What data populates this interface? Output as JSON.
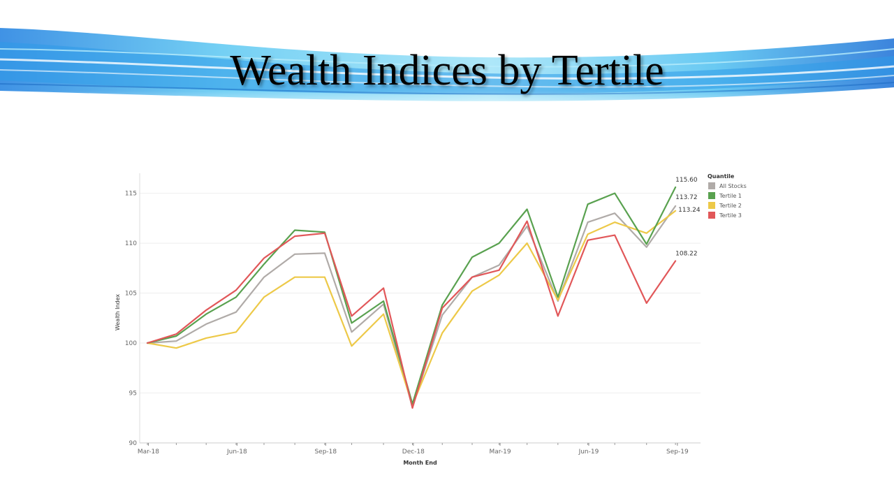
{
  "slide": {
    "title": "Wealth Indices by Tertile"
  },
  "colors": {
    "banner_dark": "#1a6fd6",
    "banner_light": "#7fd8f5"
  },
  "chart_data": {
    "type": "line",
    "title": "",
    "xlabel": "Month End",
    "ylabel": "Wealth Index",
    "ylim": [
      90,
      117
    ],
    "yticks": [
      90,
      95,
      100,
      105,
      110,
      115
    ],
    "xlim": [
      "2018-02-20",
      "2019-09-25"
    ],
    "xticks": [
      {
        "date": "2018-03-01",
        "label": "Mar-18"
      },
      {
        "date": "2018-06-01",
        "label": "Jun-18"
      },
      {
        "date": "2018-09-01",
        "label": "Sep-18"
      },
      {
        "date": "2018-12-01",
        "label": "Dec-18"
      },
      {
        "date": "2019-03-01",
        "label": "Mar-19"
      },
      {
        "date": "2019-06-01",
        "label": "Jun-19"
      },
      {
        "date": "2019-09-01",
        "label": "Sep-19"
      }
    ],
    "x": [
      "2018-02-28",
      "2018-03-30",
      "2018-04-30",
      "2018-05-31",
      "2018-06-29",
      "2018-07-31",
      "2018-08-31",
      "2018-09-28",
      "2018-10-31",
      "2018-11-30",
      "2018-12-31",
      "2019-01-31",
      "2019-02-28",
      "2019-03-29",
      "2019-04-30",
      "2019-05-31",
      "2019-06-28",
      "2019-07-31",
      "2019-08-30"
    ],
    "grid": true,
    "legend": {
      "title": "Quantile",
      "position": "top-right"
    },
    "series": [
      {
        "name": "All Stocks",
        "color": "#b0aba8",
        "values": [
          100.0,
          100.2,
          101.9,
          103.1,
          106.6,
          108.9,
          109.0,
          101.1,
          103.9,
          93.6,
          102.8,
          106.6,
          107.8,
          111.7,
          104.2,
          112.1,
          113.0,
          109.6,
          113.72
        ],
        "end_label": "113.72"
      },
      {
        "name": "Tertile 1",
        "color": "#59a14f",
        "values": [
          100.0,
          100.7,
          102.9,
          104.6,
          107.9,
          111.3,
          111.1,
          102.0,
          104.2,
          93.9,
          103.8,
          108.6,
          110.0,
          113.4,
          104.6,
          113.9,
          115.0,
          109.9,
          115.6
        ],
        "end_label": "115.60"
      },
      {
        "name": "Tertile 2",
        "color": "#edc948",
        "values": [
          100.0,
          99.5,
          100.5,
          101.1,
          104.6,
          106.6,
          106.6,
          99.7,
          102.9,
          93.8,
          101.0,
          105.2,
          106.8,
          110.0,
          104.3,
          110.9,
          112.1,
          111.0,
          113.24
        ],
        "end_label": "113.24"
      },
      {
        "name": "Tertile 3",
        "color": "#e15759",
        "values": [
          100.0,
          100.9,
          103.3,
          105.3,
          108.5,
          110.7,
          111.0,
          102.7,
          105.5,
          93.5,
          103.5,
          106.6,
          107.3,
          112.2,
          102.7,
          110.3,
          110.8,
          104.0,
          108.22
        ],
        "end_label": "108.22"
      }
    ]
  }
}
